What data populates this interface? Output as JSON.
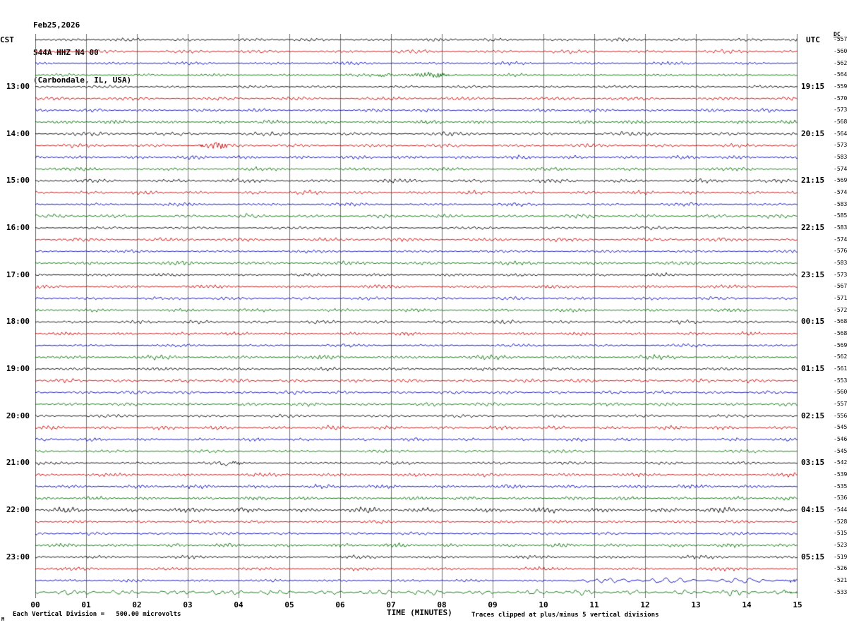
{
  "header": {
    "date": "Feb25,2026",
    "station": "S44A HHZ N4 00",
    "location": "(Carbondale, IL, USA)"
  },
  "axis": {
    "left_tz": "CST",
    "right_tz": "UTC",
    "dc_header": "DC",
    "x_title": "TIME (MINUTES)",
    "x_ticks": [
      "00",
      "01",
      "02",
      "03",
      "04",
      "05",
      "06",
      "07",
      "08",
      "09",
      "10",
      "11",
      "12",
      "13",
      "14",
      "15"
    ]
  },
  "footer": {
    "scale_note": "Each Vertical Division =   500.00 microvolts",
    "clip_note": "Traces clipped at plus/minus 5 vertical divisions",
    "corner_mark": "M"
  },
  "chart_data": {
    "type": "line",
    "title": "S44A HHZ N4 00 helicorder record, Feb25,2026, Carbondale, IL, USA",
    "xlabel": "TIME (MINUTES)",
    "x_range_minutes": [
      0,
      15
    ],
    "rows_per_hour": 4,
    "row_duration_minutes": 15,
    "microvolts_per_division": 500.0,
    "clip_divisions": 5,
    "grid": "vertical-minute-lines",
    "trace_colors": {
      "black": "#000000",
      "red": "#cc0000",
      "blue": "#0000bb",
      "green": "#007100"
    },
    "hour_labels": [
      {
        "row": 4,
        "cst": "13:00",
        "utc": "19:15"
      },
      {
        "row": 8,
        "cst": "14:00",
        "utc": "20:15"
      },
      {
        "row": 12,
        "cst": "15:00",
        "utc": "21:15"
      },
      {
        "row": 16,
        "cst": "16:00",
        "utc": "22:15"
      },
      {
        "row": 20,
        "cst": "17:00",
        "utc": "23:15"
      },
      {
        "row": 24,
        "cst": "18:00",
        "utc": "00:15"
      },
      {
        "row": 28,
        "cst": "19:00",
        "utc": "01:15"
      },
      {
        "row": 32,
        "cst": "20:00",
        "utc": "02:15"
      },
      {
        "row": 36,
        "cst": "21:00",
        "utc": "03:15"
      },
      {
        "row": 40,
        "cst": "22:00",
        "utc": "04:15"
      },
      {
        "row": 44,
        "cst": "23:00",
        "utc": "05:15"
      }
    ],
    "rows": [
      {
        "color": "black",
        "dc": -557
      },
      {
        "color": "red",
        "dc": -560
      },
      {
        "color": "blue",
        "dc": -562
      },
      {
        "color": "green",
        "dc": -564,
        "events": [
          {
            "start": 6.7,
            "end": 8.2,
            "amp": 3.2,
            "freq": 1.35
          }
        ]
      },
      {
        "color": "black",
        "dc": -559
      },
      {
        "color": "red",
        "dc": -570
      },
      {
        "color": "blue",
        "dc": -573
      },
      {
        "color": "green",
        "dc": -568
      },
      {
        "color": "black",
        "dc": -564
      },
      {
        "color": "red",
        "dc": -573,
        "events": [
          {
            "start": 3.05,
            "end": 3.8,
            "amp": 2.6,
            "freq": 1.2
          }
        ]
      },
      {
        "color": "blue",
        "dc": -583
      },
      {
        "color": "green",
        "dc": -574
      },
      {
        "color": "black",
        "dc": -569
      },
      {
        "color": "red",
        "dc": -574
      },
      {
        "color": "blue",
        "dc": -583
      },
      {
        "color": "green",
        "dc": -585
      },
      {
        "color": "black",
        "dc": -583
      },
      {
        "color": "red",
        "dc": -574
      },
      {
        "color": "blue",
        "dc": -576
      },
      {
        "color": "green",
        "dc": -583
      },
      {
        "color": "black",
        "dc": -573
      },
      {
        "color": "red",
        "dc": -567
      },
      {
        "color": "blue",
        "dc": -571
      },
      {
        "color": "green",
        "dc": -572
      },
      {
        "color": "black",
        "dc": -568
      },
      {
        "color": "red",
        "dc": -568,
        "events": [
          {
            "start": 2.2,
            "end": 2.5,
            "amp": 3.2,
            "freq": 1.5
          }
        ]
      },
      {
        "color": "blue",
        "dc": -569
      },
      {
        "color": "green",
        "dc": -562
      },
      {
        "color": "black",
        "dc": -561
      },
      {
        "color": "red",
        "dc": -553
      },
      {
        "color": "blue",
        "dc": -560
      },
      {
        "color": "green",
        "dc": -557
      },
      {
        "color": "black",
        "dc": -556
      },
      {
        "color": "red",
        "dc": -545
      },
      {
        "color": "blue",
        "dc": -546
      },
      {
        "color": "green",
        "dc": -545
      },
      {
        "color": "black",
        "dc": -542,
        "events": [
          {
            "start": 3.65,
            "end": 4.1,
            "amp": 2.8,
            "freq": 1.4
          }
        ]
      },
      {
        "color": "red",
        "dc": -539
      },
      {
        "color": "blue",
        "dc": -535
      },
      {
        "color": "green",
        "dc": -536
      },
      {
        "color": "black",
        "dc": -544,
        "events": [
          {
            "start": 0,
            "end": 15,
            "amp": 1.35,
            "freq": 1.25
          }
        ]
      },
      {
        "color": "red",
        "dc": -528
      },
      {
        "color": "blue",
        "dc": -515
      },
      {
        "color": "green",
        "dc": -523
      },
      {
        "color": "black",
        "dc": -519
      },
      {
        "color": "red",
        "dc": -526
      },
      {
        "color": "blue",
        "dc": -521,
        "events": [
          {
            "start": 10.3,
            "end": 15,
            "amp": 2.3,
            "freq": 0.35
          }
        ]
      },
      {
        "color": "green",
        "dc": -533,
        "events": [
          {
            "start": 0,
            "end": 15,
            "amp": 1.5,
            "freq": 0.55
          }
        ]
      }
    ]
  }
}
